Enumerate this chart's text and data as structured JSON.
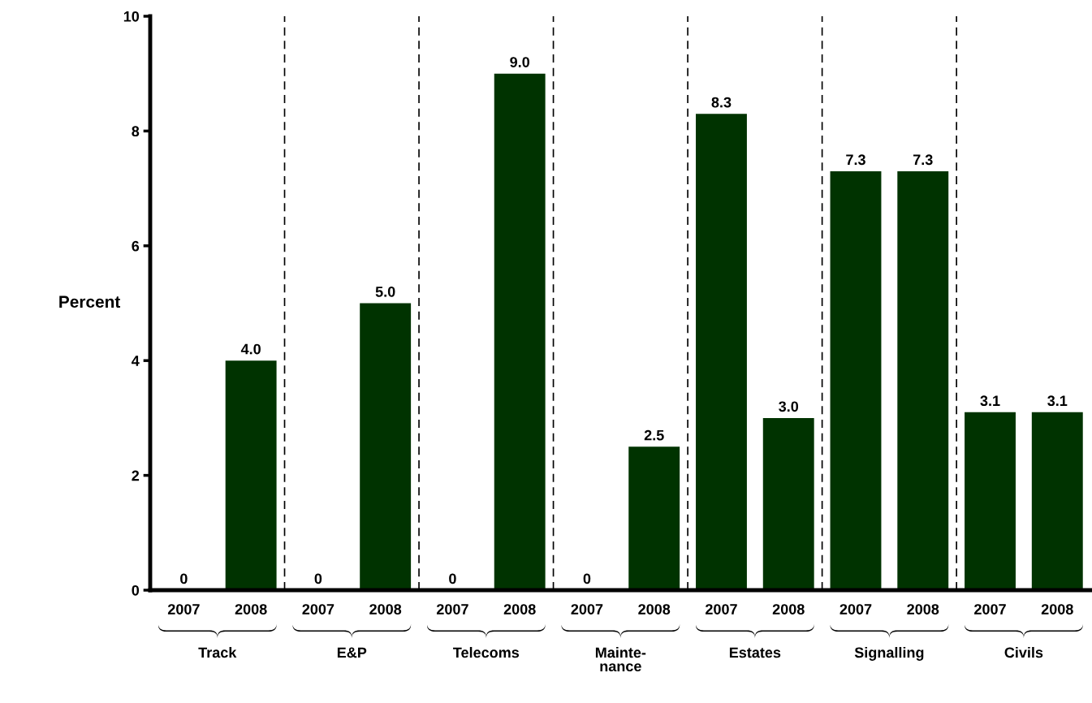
{
  "chart_data": {
    "type": "bar",
    "ylabel": "Percent",
    "categories": [
      "2007",
      "2008",
      "2007",
      "2008",
      "2007",
      "2008",
      "2007",
      "2008",
      "2007",
      "2008",
      "2007",
      "2008",
      "2007",
      "2008"
    ],
    "values": [
      0,
      4.0,
      0,
      5.0,
      0,
      9.0,
      0,
      2.5,
      8.3,
      3.0,
      7.3,
      7.3,
      3.1,
      3.1
    ],
    "value_labels": [
      "0",
      "4.0",
      "0",
      "5.0",
      "0",
      "9.0",
      "0",
      "2.5",
      "8.3",
      "3.0",
      "7.3",
      "7.3",
      "3.1",
      "3.1"
    ],
    "color": "#003300",
    "ylim": [
      0,
      10
    ],
    "yticks": [
      0,
      2,
      4,
      6,
      8,
      10
    ],
    "grid": false,
    "annotations": [
      "Track",
      "E&P",
      "Telecoms",
      "Mainte-\nnance",
      "Estates",
      "Signalling",
      "Civils"
    ]
  }
}
